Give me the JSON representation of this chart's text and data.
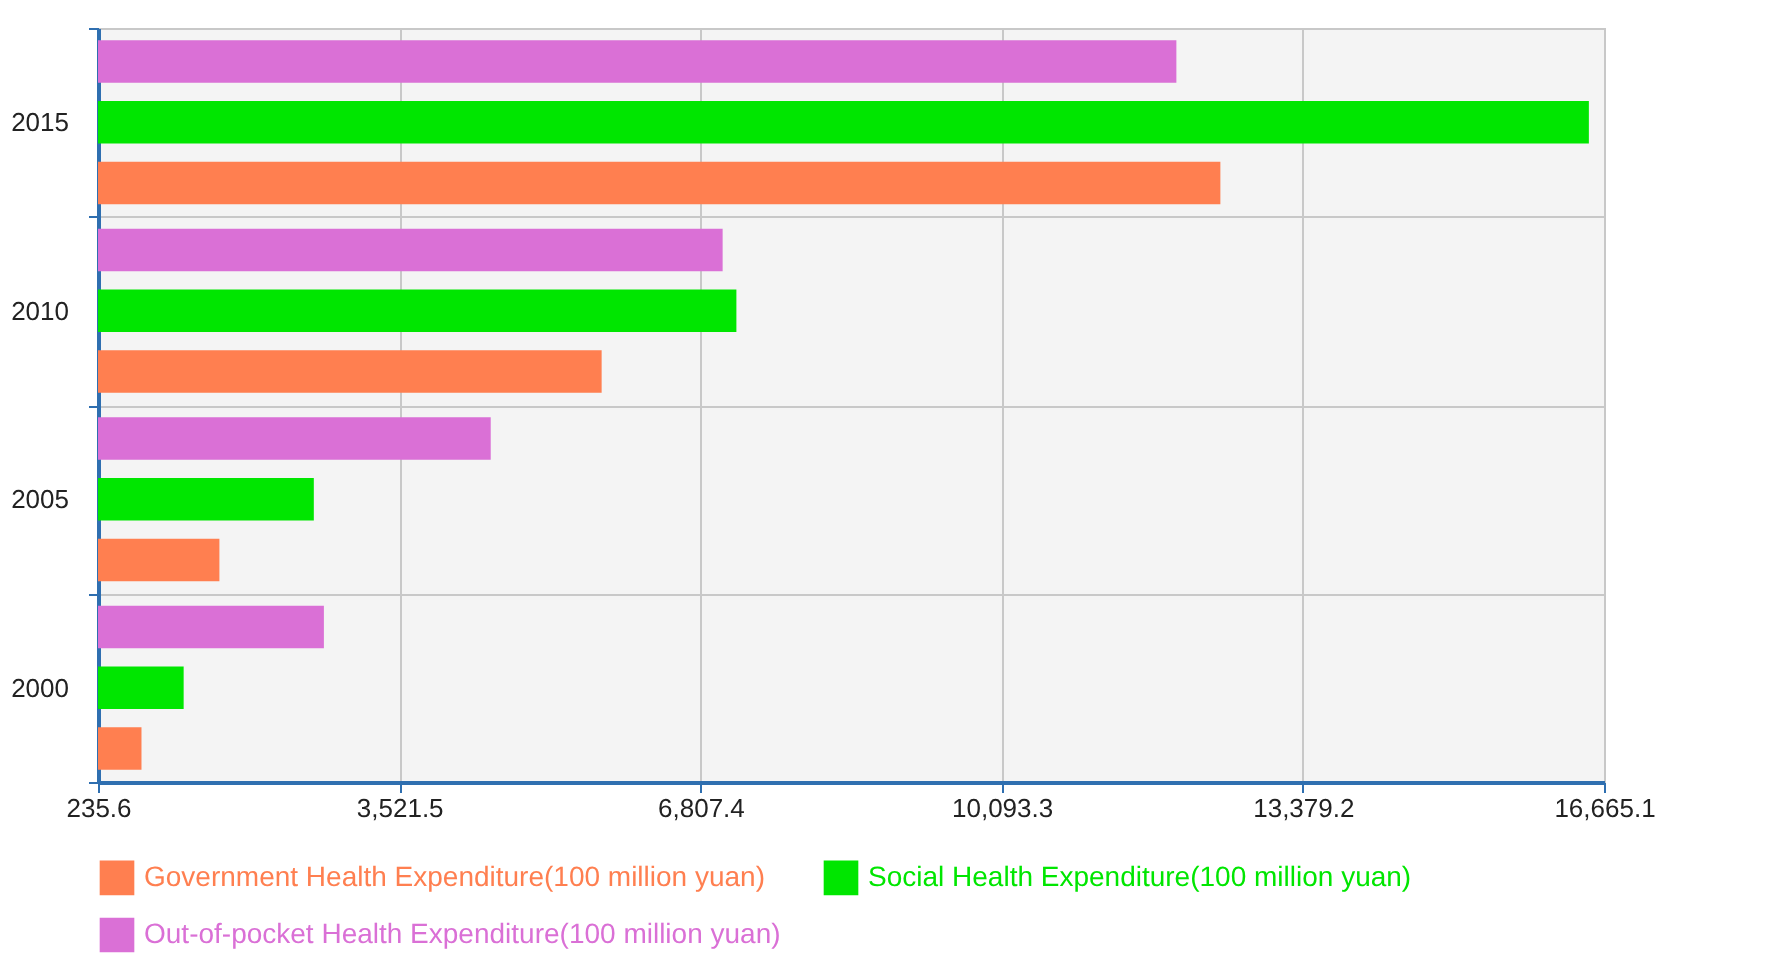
{
  "chart_data": {
    "type": "bar",
    "orientation": "horizontal",
    "categories": [
      "2015",
      "2010",
      "2005",
      "2000"
    ],
    "series": [
      {
        "name": "Government Health Expenditure(100 million yuan)",
        "color": "#ff7f50",
        "values": [
          12480,
          5730,
          1560,
          710
        ]
      },
      {
        "name": "Social Health Expenditure(100 million yuan)",
        "color": "#00e600",
        "values": [
          16500,
          7200,
          2590,
          1170
        ]
      },
      {
        "name": "Out-of-pocket Health Expenditure(100 million yuan)",
        "color": "#da70d6",
        "values": [
          12000,
          7050,
          4520,
          2700
        ]
      }
    ],
    "xlim": [
      235.6,
      16665.1
    ],
    "xticks": [
      {
        "value": 235.6,
        "label": "235.6"
      },
      {
        "value": 3521.5,
        "label": "3,521.5"
      },
      {
        "value": 6807.4,
        "label": "6,807.4"
      },
      {
        "value": 10093.3,
        "label": "10,093.3"
      },
      {
        "value": 13379.2,
        "label": "13,379.2"
      },
      {
        "value": 16665.1,
        "label": "16,665.1"
      }
    ],
    "grid": true,
    "legend": "bottom"
  }
}
